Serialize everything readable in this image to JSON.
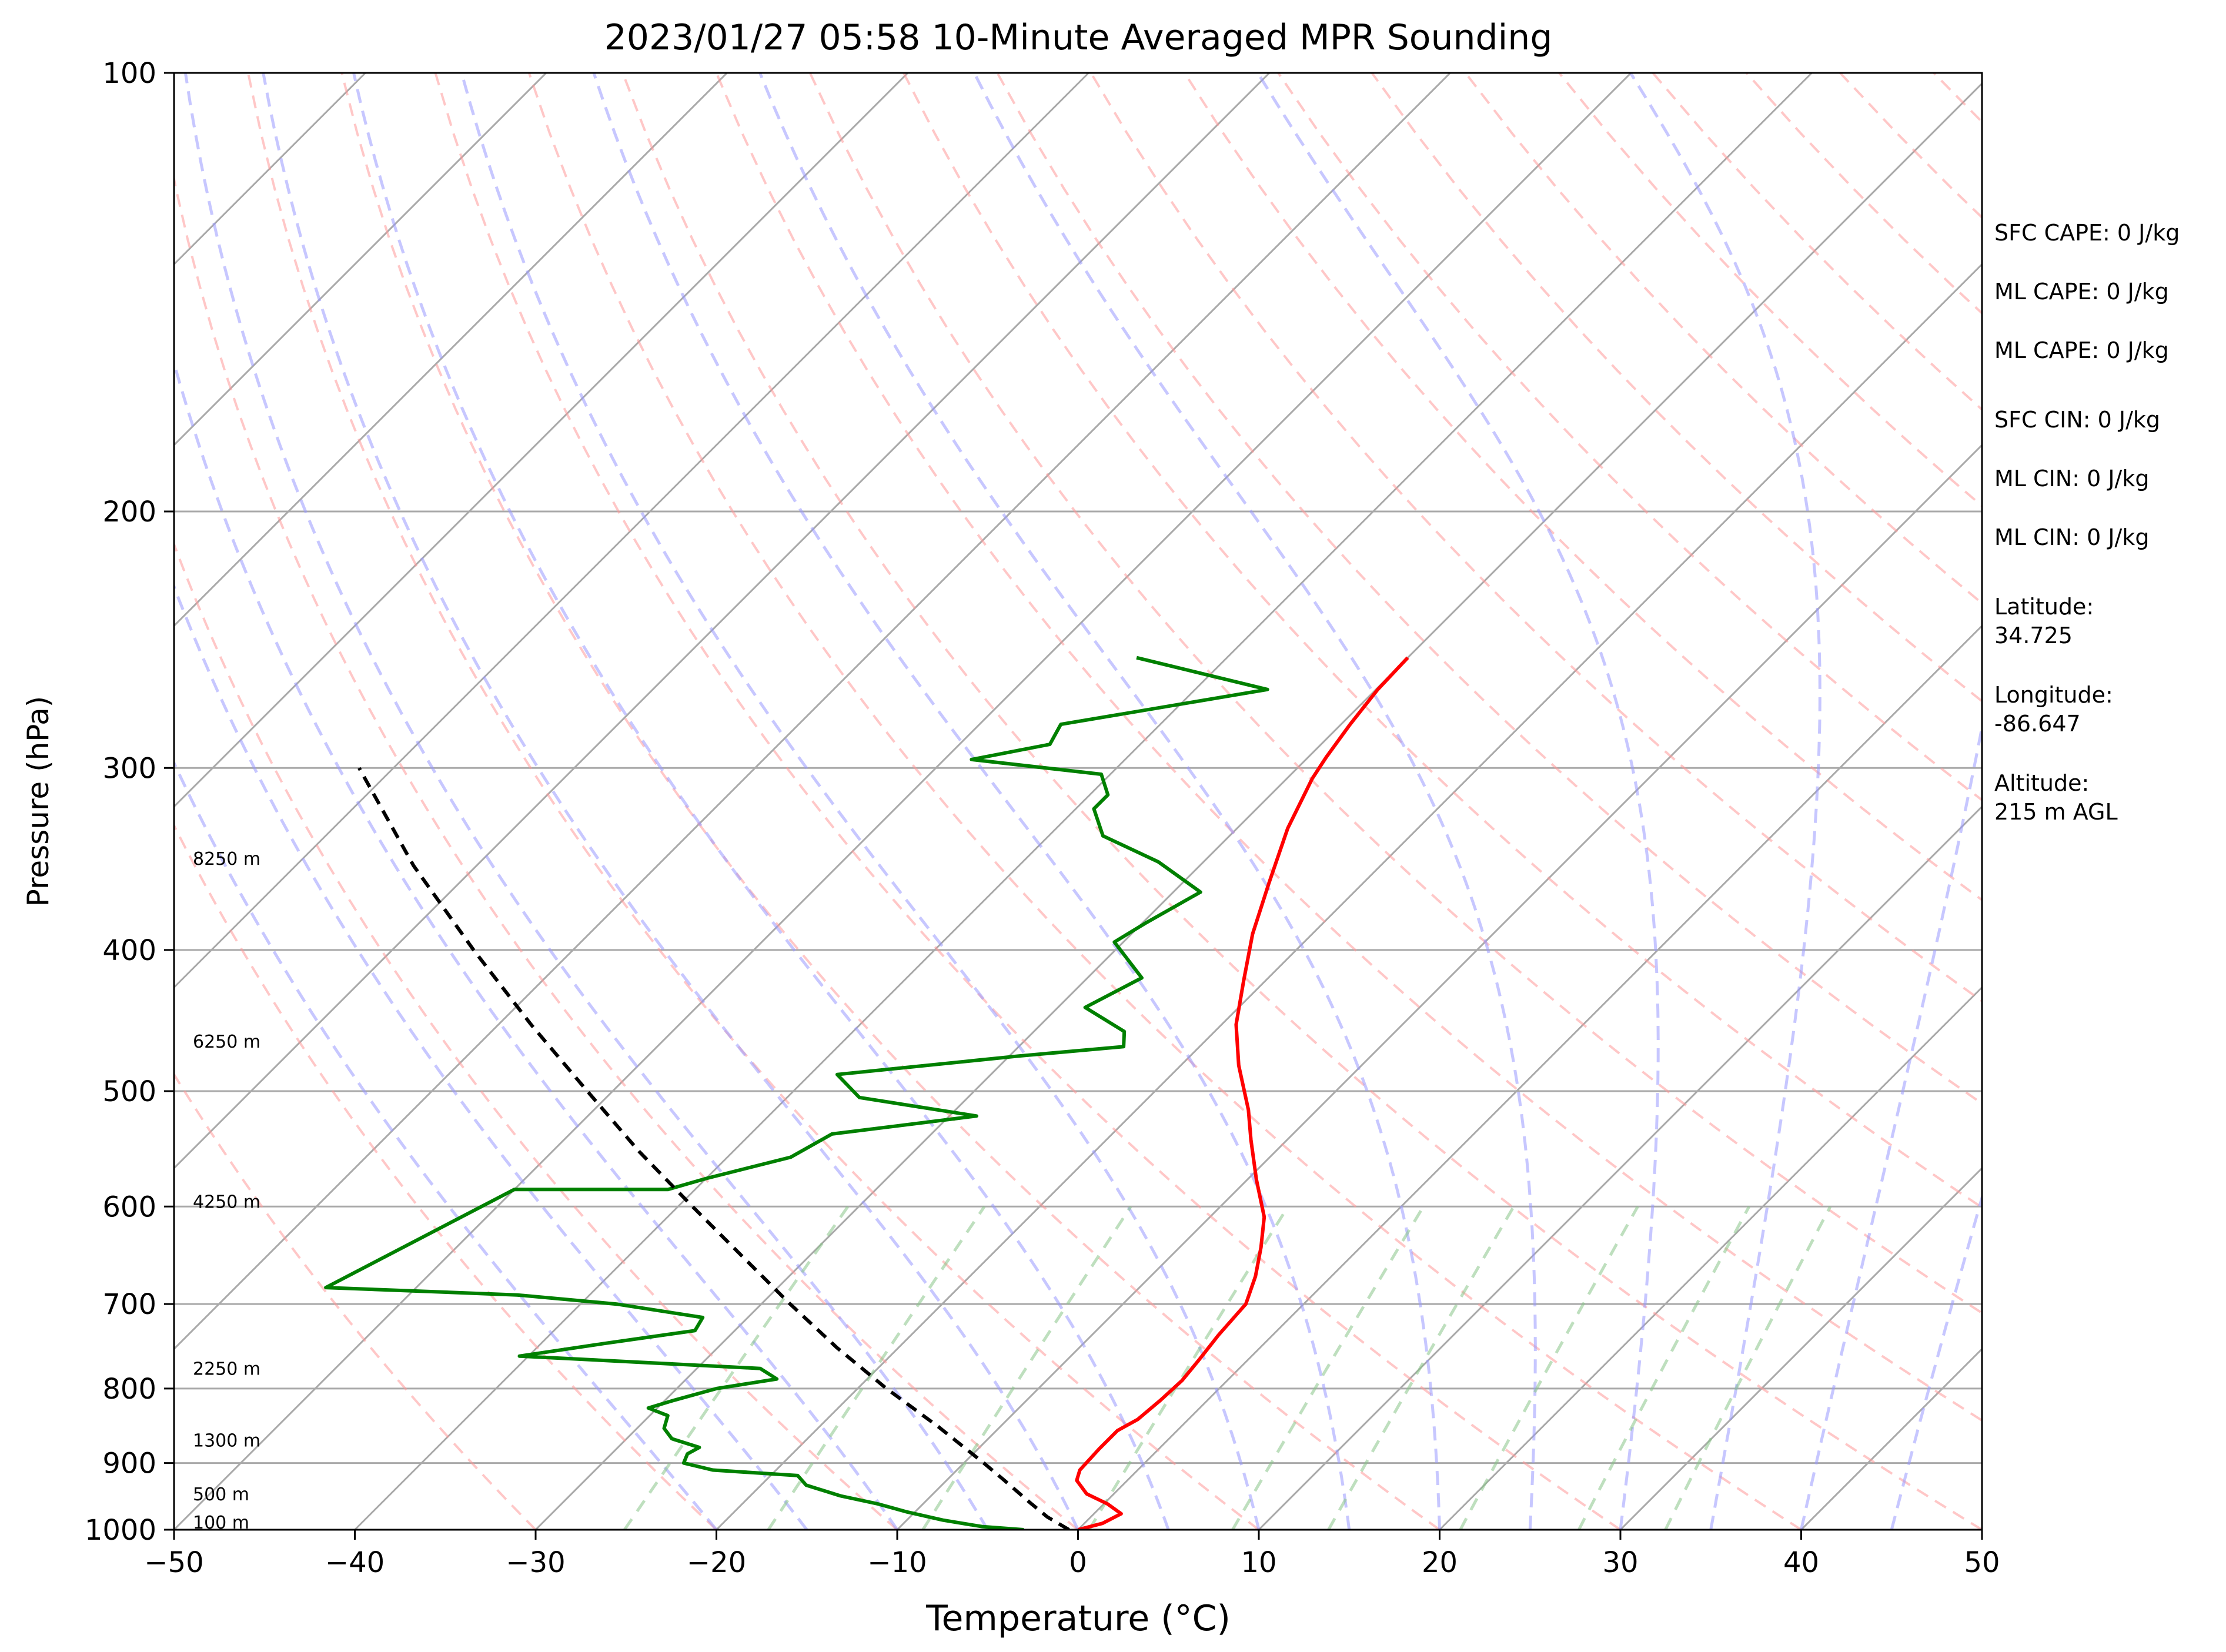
{
  "chart_data": {
    "type": "line",
    "title": "2023/01/27 05:58 10-Minute Averaged MPR Sounding",
    "xlabel": "Temperature (°C)",
    "ylabel": "Pressure (hPa)",
    "xlim": [
      -50,
      50
    ],
    "ylim": [
      1000,
      100
    ],
    "y_scale": "log",
    "skew": "skew-T log-p",
    "x_ticks": [
      "−50",
      "−40",
      "−30",
      "−20",
      "−10",
      "0",
      "10",
      "20",
      "30",
      "40",
      "50"
    ],
    "y_ticks": [
      "100",
      "200",
      "300",
      "400",
      "500",
      "600",
      "700",
      "800",
      "900",
      "1000"
    ],
    "grid": true,
    "colors": {
      "temperature": "#ff0000",
      "dewpoint": "#008000",
      "parcel": "#000000",
      "isotherms": "#a9a9a9",
      "dry_adiabats": "#ff9999",
      "moist_adiabats": "#9999ff",
      "mixing_ratio": "#88c488"
    },
    "height_labels": [
      {
        "text": "100 m",
        "pressure": 988
      },
      {
        "text": "500 m",
        "pressure": 945
      },
      {
        "text": "1300 m",
        "pressure": 868
      },
      {
        "text": "2250 m",
        "pressure": 775
      },
      {
        "text": "4250 m",
        "pressure": 595
      },
      {
        "text": "6250 m",
        "pressure": 462
      },
      {
        "text": "8250 m",
        "pressure": 346
      }
    ],
    "series": [
      {
        "key": "temperature",
        "points": [
          [
            1000,
            0.0
          ],
          [
            990,
            1.0
          ],
          [
            975,
            1.5
          ],
          [
            960,
            0.2
          ],
          [
            945,
            -1.5
          ],
          [
            925,
            -2.8
          ],
          [
            910,
            -3.2
          ],
          [
            880,
            -3.3
          ],
          [
            855,
            -3.3
          ],
          [
            840,
            -2.8
          ],
          [
            815,
            -2.6
          ],
          [
            790,
            -2.5
          ],
          [
            765,
            -2.7
          ],
          [
            735,
            -3.0
          ],
          [
            700,
            -3.2
          ],
          [
            670,
            -4.2
          ],
          [
            640,
            -5.5
          ],
          [
            610,
            -7.0
          ],
          [
            575,
            -9.5
          ],
          [
            540,
            -12.0
          ],
          [
            515,
            -13.8
          ],
          [
            480,
            -16.8
          ],
          [
            450,
            -19.2
          ],
          [
            420,
            -21.2
          ],
          [
            390,
            -23.3
          ],
          [
            360,
            -25.2
          ],
          [
            330,
            -27.2
          ],
          [
            305,
            -28.6
          ],
          [
            295,
            -29.0
          ],
          [
            280,
            -29.5
          ],
          [
            265,
            -29.9
          ],
          [
            252,
            -30.0
          ]
        ]
      },
      {
        "key": "dewpoint",
        "points": [
          [
            1000,
            -3.0
          ],
          [
            995,
            -5.5
          ],
          [
            985,
            -8.0
          ],
          [
            972,
            -10.5
          ],
          [
            960,
            -12.5
          ],
          [
            948,
            -15.0
          ],
          [
            932,
            -17.5
          ],
          [
            918,
            -18.5
          ],
          [
            910,
            -23.5
          ],
          [
            900,
            -25.5
          ],
          [
            887,
            -25.8
          ],
          [
            878,
            -25.5
          ],
          [
            866,
            -27.5
          ],
          [
            852,
            -28.5
          ],
          [
            835,
            -29.0
          ],
          [
            825,
            -30.5
          ],
          [
            815,
            -29.5
          ],
          [
            800,
            -27.8
          ],
          [
            788,
            -25.0
          ],
          [
            775,
            -26.5
          ],
          [
            760,
            -40.5
          ],
          [
            745,
            -36.5
          ],
          [
            730,
            -32.2
          ],
          [
            715,
            -32.5
          ],
          [
            700,
            -38.0
          ],
          [
            690,
            -44.0
          ],
          [
            682,
            -55.0
          ],
          [
            584,
            -50.0
          ],
          [
            584,
            -41.5
          ],
          [
            574,
            -40.0
          ],
          [
            555,
            -36.5
          ],
          [
            535,
            -35.5
          ],
          [
            520,
            -28.5
          ],
          [
            505,
            -36.0
          ],
          [
            487,
            -38.5
          ],
          [
            473,
            -29.5
          ],
          [
            466,
            -24.2
          ],
          [
            455,
            -25.0
          ],
          [
            438,
            -28.5
          ],
          [
            418,
            -27.0
          ],
          [
            395,
            -30.5
          ],
          [
            383,
            -29.8
          ],
          [
            365,
            -28.5
          ],
          [
            348,
            -32.5
          ],
          [
            334,
            -37.0
          ],
          [
            320,
            -39.0
          ],
          [
            313,
            -39.0
          ],
          [
            303,
            -40.5
          ],
          [
            296,
            -48.5
          ],
          [
            289,
            -45.0
          ],
          [
            280,
            -45.5
          ],
          [
            265,
            -36.0
          ],
          [
            252,
            -45.0
          ]
        ]
      },
      {
        "key": "parcel",
        "points": [
          [
            1000,
            -0.5
          ],
          [
            980,
            -2.4
          ],
          [
            960,
            -4.0
          ],
          [
            925,
            -6.8
          ],
          [
            900,
            -8.9
          ],
          [
            850,
            -13.4
          ],
          [
            800,
            -18.4
          ],
          [
            750,
            -23.4
          ],
          [
            700,
            -28.4
          ],
          [
            650,
            -33.6
          ],
          [
            600,
            -39.2
          ],
          [
            550,
            -45.2
          ],
          [
            500,
            -51.4
          ],
          [
            450,
            -58.2
          ],
          [
            400,
            -65.5
          ],
          [
            350,
            -73.5
          ],
          [
            300,
            -81.9
          ]
        ]
      }
    ],
    "stats": [
      {
        "text": "SFC CAPE: 0 J/kg"
      },
      {
        "text": "ML CAPE: 0 J/kg"
      },
      {
        "text": "ML CAPE: 0 J/kg"
      },
      {
        "text": "SFC CIN: 0 J/kg"
      },
      {
        "text": "ML CIN: 0 J/kg"
      },
      {
        "text": "ML CIN: 0 J/kg"
      },
      {
        "text": "Latitude:",
        "value": "34.725"
      },
      {
        "text": "Longitude:",
        "value": "-86.647"
      },
      {
        "text": "Altitude:",
        "value": "215 m AGL"
      }
    ]
  }
}
